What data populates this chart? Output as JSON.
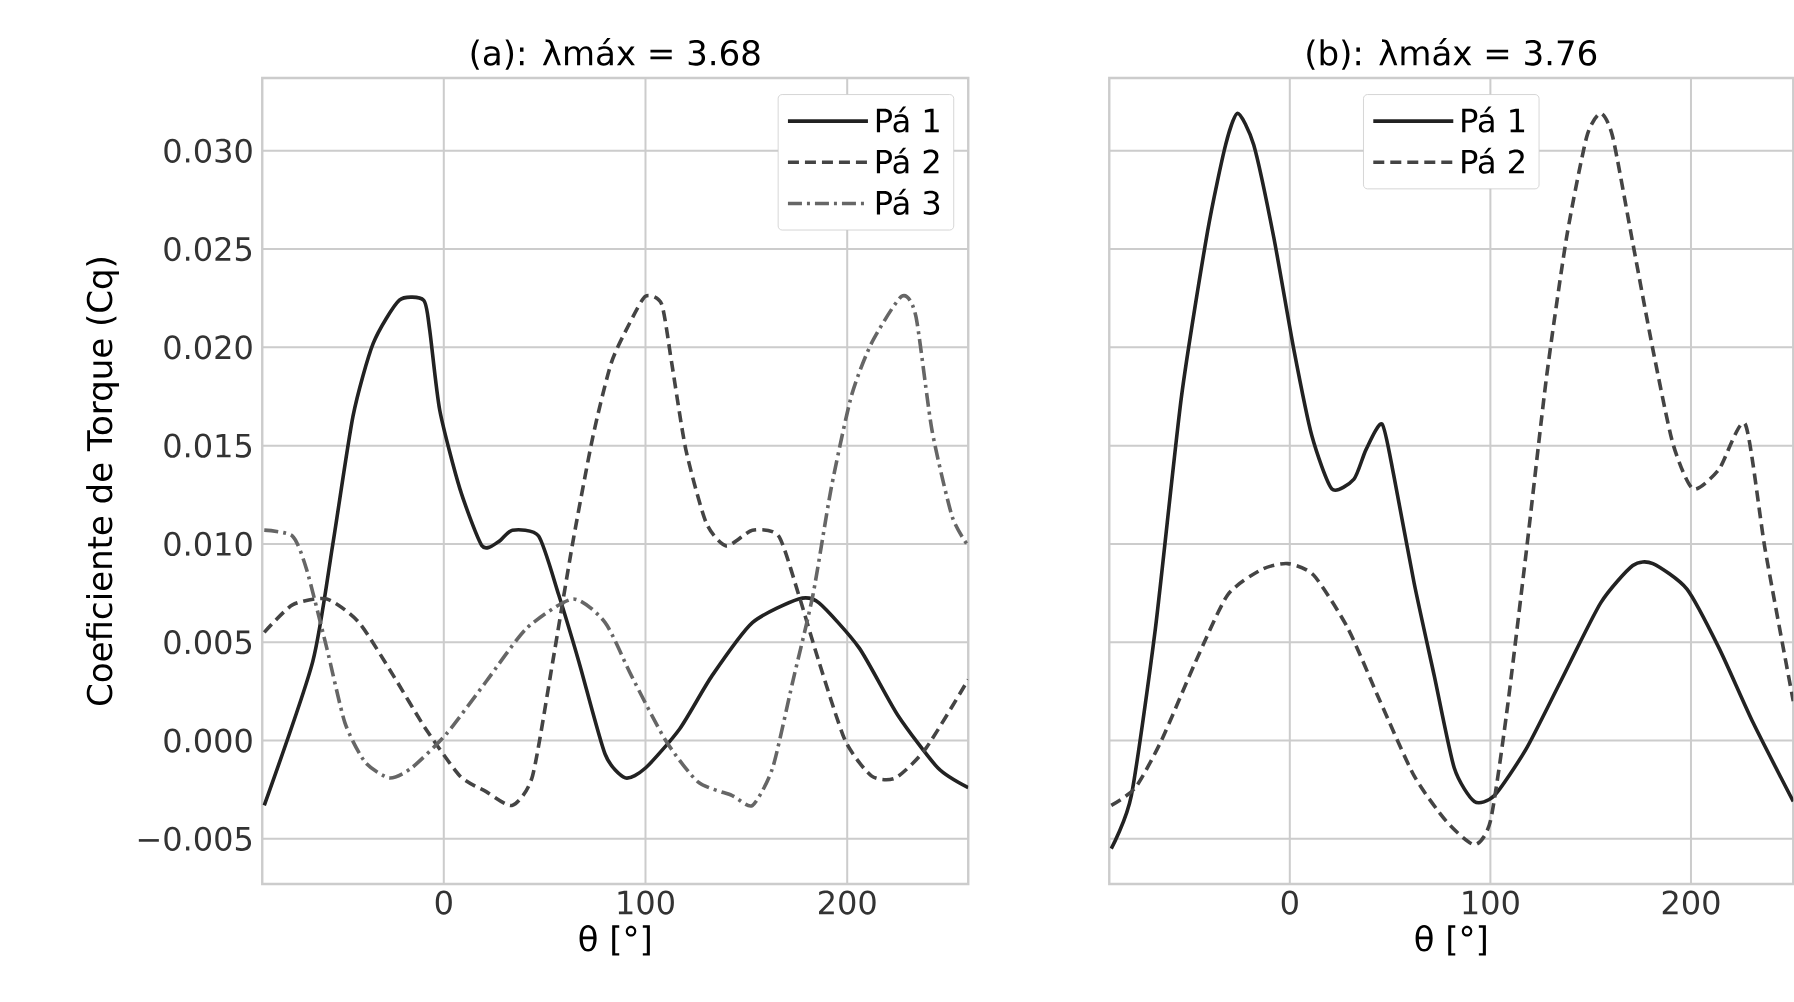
{
  "chart_data": [
    {
      "type": "line",
      "title": "(a): λmáx = 3.68",
      "xlabel": "θ [°]",
      "ylabel": "Coeficiente de Torque (Cq)",
      "xlim": [
        -90,
        260
      ],
      "ylim": [
        -0.0073,
        0.0337
      ],
      "xticks": [
        0,
        100,
        200
      ],
      "yticks": [
        {
          "value": -0.005,
          "label": "−0.005"
        },
        {
          "value": 0,
          "label": "0.000"
        },
        {
          "value": 0.005,
          "label": "0.005"
        },
        {
          "value": 0.01,
          "label": "0.010"
        },
        {
          "value": 0.015,
          "label": "0.015"
        },
        {
          "value": 0.02,
          "label": "0.020"
        },
        {
          "value": 0.025,
          "label": "0.025"
        },
        {
          "value": 0.03,
          "label": "0.030"
        }
      ],
      "grid": true,
      "legend": "top right",
      "series": [
        {
          "name": "Pá 1",
          "color": "#222222",
          "line_style": "solid",
          "x": [
            -89,
            -65,
            -55,
            -45,
            -35,
            -22,
            -10,
            -7,
            -2,
            8,
            19,
            27,
            34,
            47,
            57,
            67,
            80,
            90,
            100,
            117,
            133,
            153,
            176,
            186,
            206,
            225,
            245,
            260
          ],
          "values": [
            -0.0033,
            0.004,
            0.01,
            0.0165,
            0.0202,
            0.0224,
            0.0224,
            0.0209,
            0.0168,
            0.0128,
            0.0099,
            0.0101,
            0.0107,
            0.0104,
            0.0074,
            0.004,
            -0.0007,
            -0.0019,
            -0.0014,
            0.0006,
            0.0033,
            0.006,
            0.0072,
            0.007,
            0.0047,
            0.0013,
            -0.0014,
            -0.0024
          ]
        },
        {
          "name": "Pá 2",
          "color": "#444444",
          "line_style": "dashed",
          "x": [
            -89,
            -75,
            -58,
            -42,
            -25,
            -9,
            8,
            21,
            34,
            44,
            54,
            64,
            74,
            83,
            92,
            100,
            108,
            113,
            120,
            130,
            140,
            153,
            166,
            176,
            186,
            199,
            212,
            224,
            239,
            260
          ],
          "values": [
            0.0055,
            0.0069,
            0.0072,
            0.006,
            0.0033,
            0.0006,
            -0.0018,
            -0.0026,
            -0.0033,
            -0.0018,
            0.004,
            0.0101,
            0.0155,
            0.0192,
            0.0212,
            0.0226,
            0.0222,
            0.0192,
            0.0148,
            0.0111,
            0.0099,
            0.0107,
            0.0104,
            0.0074,
            0.004,
            0.0,
            -0.0018,
            -0.0019,
            -0.0004,
            0.0031
          ]
        },
        {
          "name": "Pá 3",
          "color": "#666666",
          "line_style": "dashdot",
          "x": [
            -89,
            -75,
            -68,
            -58,
            -49,
            -39,
            -27,
            -16,
            1,
            21,
            41,
            64,
            80,
            93,
            110,
            126,
            143,
            153,
            163,
            173,
            183,
            192,
            202,
            212,
            227,
            234,
            242,
            252,
            260
          ],
          "values": [
            0.0107,
            0.0104,
            0.0087,
            0.0047,
            0.0009,
            -0.0011,
            -0.0019,
            -0.0014,
            0.0003,
            0.003,
            0.0057,
            0.0072,
            0.006,
            0.0033,
            0.0,
            -0.0021,
            -0.0028,
            -0.0033,
            -0.0014,
            0.003,
            0.0074,
            0.0128,
            0.0175,
            0.0202,
            0.0226,
            0.0216,
            0.0158,
            0.0114,
            0.0099
          ]
        }
      ]
    },
    {
      "type": "line",
      "title": "(b): λmáx = 3.76",
      "xlabel": "θ [°]",
      "xlim": [
        -90,
        251
      ],
      "ylim": [
        -0.0073,
        0.0337
      ],
      "xticks": [
        0,
        100,
        200
      ],
      "yticks": [
        -0.005,
        0,
        0.005,
        0.01,
        0.015,
        0.02,
        0.025,
        0.03
      ],
      "tick_labels": "x",
      "grid": true,
      "legend": "top",
      "series": [
        {
          "name": "Pá 1",
          "color": "#222222",
          "line_style": "solid",
          "x": [
            -89,
            -79,
            -67,
            -54,
            -41,
            -32,
            -26,
            -18,
            -8,
            2,
            11,
            21,
            32,
            38,
            46,
            52,
            62,
            72,
            82,
            92,
            102,
            118,
            135,
            155,
            171,
            181,
            198,
            214,
            231,
            251
          ],
          "values": [
            -0.0055,
            -0.0028,
            0.0057,
            0.0175,
            0.0259,
            0.0303,
            0.0319,
            0.0303,
            0.0256,
            0.0199,
            0.0155,
            0.0128,
            0.0133,
            0.0148,
            0.0161,
            0.0134,
            0.008,
            0.0033,
            -0.0014,
            -0.0031,
            -0.0028,
            -0.0004,
            0.003,
            0.007,
            0.0089,
            0.009,
            0.0077,
            0.0047,
            0.0009,
            -0.0031
          ]
        },
        {
          "name": "Pá 2",
          "color": "#444444",
          "line_style": "dashed",
          "x": [
            -89,
            -77,
            -64,
            -47,
            -31,
            -14,
            -1,
            12,
            29,
            45,
            62,
            78,
            92,
            100,
            108,
            118,
            128,
            138,
            148,
            155,
            161,
            171,
            181,
            191,
            201,
            214,
            227,
            237,
            251
          ],
          "values": [
            -0.0033,
            -0.0024,
            0.0,
            0.004,
            0.0074,
            0.0087,
            0.009,
            0.0084,
            0.0057,
            0.002,
            -0.0018,
            -0.0041,
            -0.0053,
            -0.0041,
            0.0013,
            0.0097,
            0.0185,
            0.0256,
            0.0307,
            0.0319,
            0.0307,
            0.0253,
            0.0199,
            0.0151,
            0.0128,
            0.0138,
            0.0161,
            0.0097,
            0.002
          ]
        }
      ]
    }
  ]
}
